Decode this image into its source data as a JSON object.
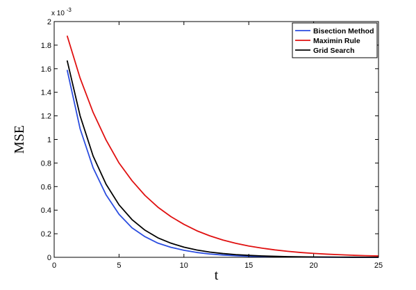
{
  "chart_data": {
    "type": "line",
    "xlabel": "t",
    "ylabel": "MSE",
    "xlim": [
      0,
      25
    ],
    "ylim": [
      0,
      0.002
    ],
    "y_multiplier_base": "x 10",
    "y_multiplier_exp": "-3",
    "x_ticks": [
      "0",
      "5",
      "10",
      "15",
      "20",
      "25"
    ],
    "y_ticks": [
      "0",
      "0.2",
      "0.4",
      "0.6",
      "0.8",
      "1",
      "1.2",
      "1.4",
      "1.6",
      "1.8",
      "2"
    ],
    "grid": false,
    "legend_position": "top-right",
    "x": [
      1,
      2,
      3,
      4,
      5,
      6,
      7,
      8,
      9,
      10,
      11,
      12,
      13,
      14,
      15,
      16,
      17,
      18,
      19,
      20,
      21,
      22,
      23,
      24,
      25
    ],
    "series": [
      {
        "name": "Bisection Method",
        "color": "#2b4de0",
        "values": [
          0.00159,
          0.00109,
          0.00076,
          0.00053,
          0.000365,
          0.00025,
          0.000175,
          0.00012,
          8.5e-05,
          6e-05,
          4.1e-05,
          2.8e-05,
          1.95e-05,
          1.35e-05,
          9.3e-06,
          6.4e-06,
          4.4e-06,
          3e-06,
          2.1e-06,
          1.4e-06,
          1e-06,
          7e-07,
          5e-07,
          3e-07,
          2e-07
        ]
      },
      {
        "name": "Maximin Rule",
        "color": "#e01010",
        "values": [
          0.00188,
          0.00152,
          0.00123,
          0.000995,
          0.0008,
          0.00065,
          0.000525,
          0.000425,
          0.000345,
          0.00028,
          0.000225,
          0.000182,
          0.000147,
          0.000119,
          9.6e-05,
          7.8e-05,
          6.3e-05,
          5.1e-05,
          4.1e-05,
          3.3e-05,
          2.7e-05,
          2.2e-05,
          1.75e-05,
          1.4e-05,
          1.15e-05
        ]
      },
      {
        "name": "Grid Search",
        "color": "#000000",
        "values": [
          0.00167,
          0.0012,
          0.00086,
          0.00062,
          0.000445,
          0.00032,
          0.00023,
          0.000165,
          0.00012,
          8.6e-05,
          6.2e-05,
          4.4e-05,
          3.2e-05,
          2.3e-05,
          1.65e-05,
          1.18e-05,
          8.5e-06,
          6.1e-06,
          4.4e-06,
          3.1e-06,
          2.2e-06,
          1.6e-06,
          1.2e-06,
          8e-07,
          6e-07
        ]
      }
    ]
  }
}
